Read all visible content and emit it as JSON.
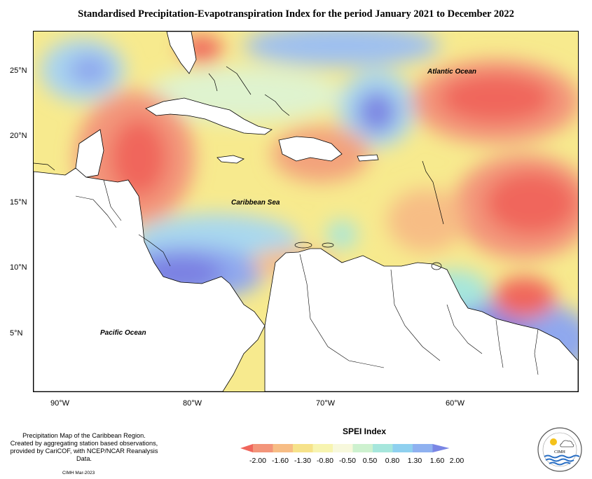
{
  "title": "Standardised Precipitation-Evapotranspiration Index for the period January 2021 to December 2022",
  "axes": {
    "lat_ticks": [
      "25°N",
      "20°N",
      "15°N",
      "10°N",
      "5°N"
    ],
    "lon_ticks": [
      "90°W",
      "80°W",
      "70°W",
      "60°W"
    ]
  },
  "labels": {
    "atlantic": "Atlantic Ocean",
    "caribbean": "Caribbean Sea",
    "pacific": "Pacific Ocean"
  },
  "footnote": {
    "line1": "Precipitation Map of the Caribbean Region.",
    "line2": "Created by aggregating station based observations,",
    "line3": "provided by CariCOF, with NCEP/NCAR Reanalysis Data.",
    "credit": "CIMH Mar-2023"
  },
  "legend": {
    "title": "SPEI Index",
    "values": [
      "-2.00",
      "-1.60",
      "-1.30",
      "-0.80",
      "-0.50",
      "0.50",
      "0.80",
      "1.30",
      "1.60",
      "2.00"
    ],
    "colors": [
      "#f0665c",
      "#f3957a",
      "#f7bd85",
      "#f6e28a",
      "#f7f4b0",
      "#f7f8dc",
      "#cdf1cf",
      "#a6e6dc",
      "#8fd0ef",
      "#8fb1f0",
      "#7a86e4"
    ]
  },
  "logo": {
    "text": "CIMH"
  }
}
